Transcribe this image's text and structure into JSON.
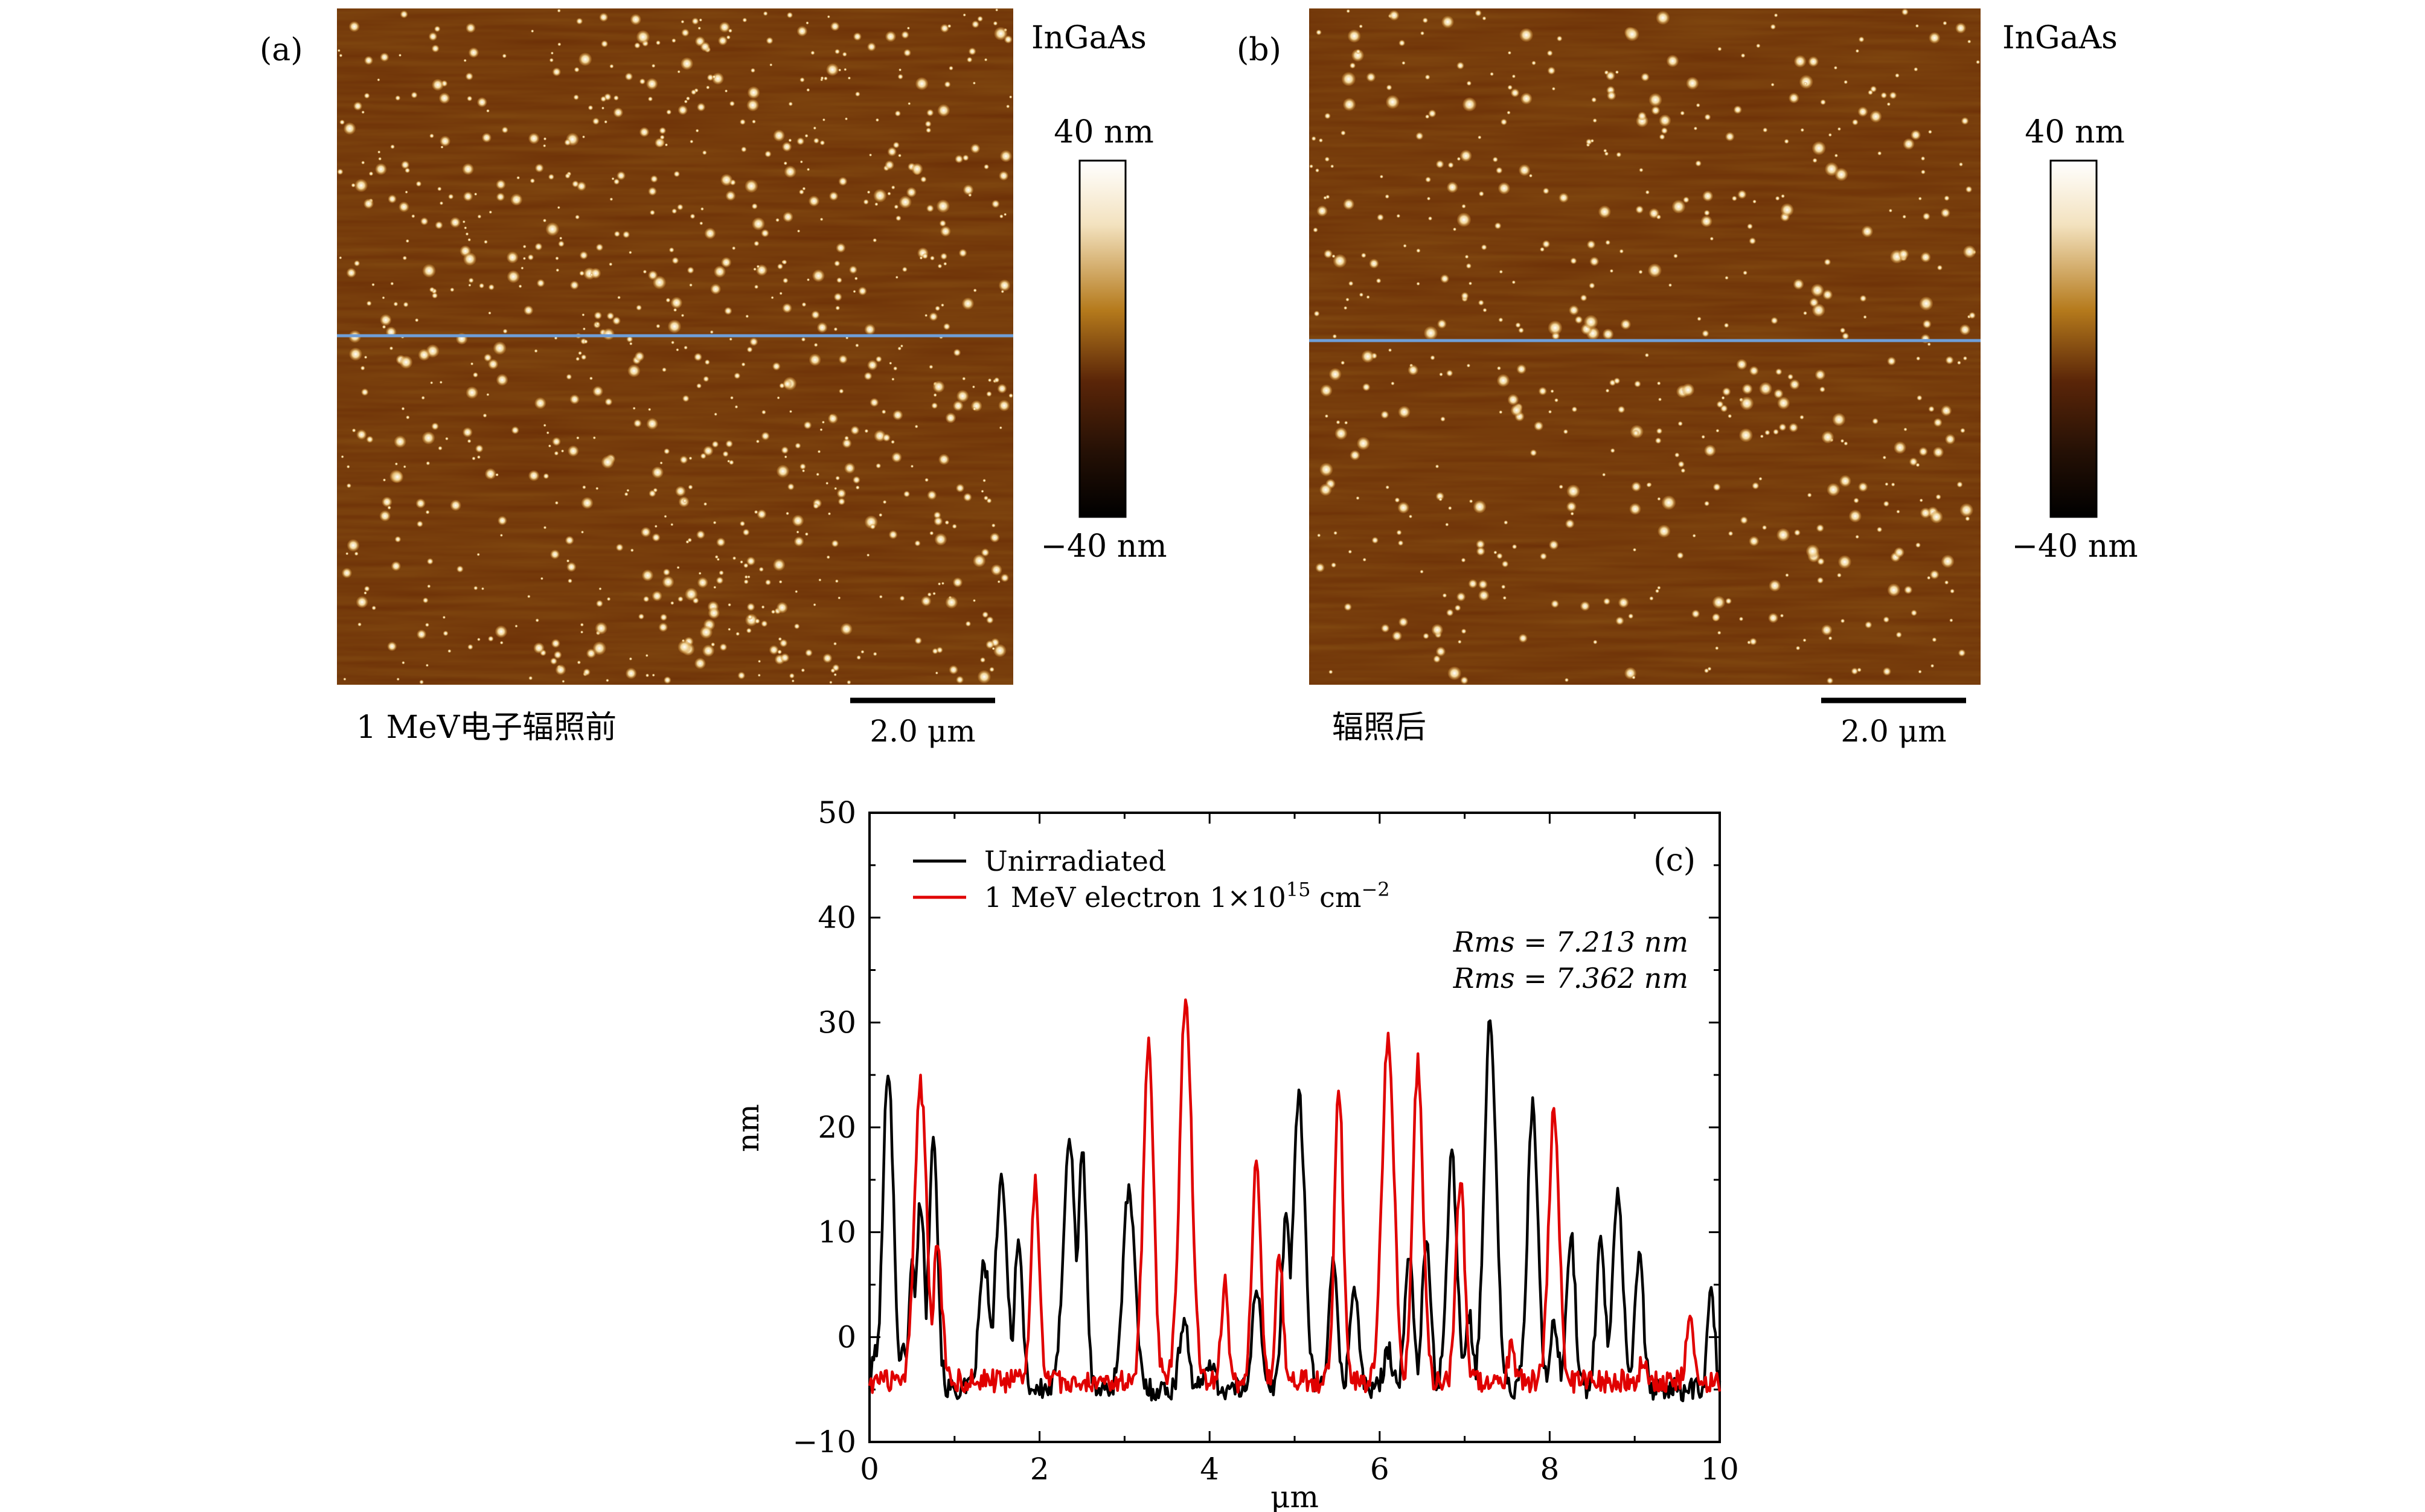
{
  "panel_a": {
    "label": "(a)",
    "material": "InGaAs",
    "colorbar_max": "40 nm",
    "colorbar_min": "−40 nm",
    "caption": "1 MeV电子辐照前",
    "scalebar": "2.0 μm"
  },
  "panel_b": {
    "label": "(b)",
    "material": "InGaAs",
    "colorbar_max": "40 nm",
    "colorbar_min": "−40 nm",
    "caption": "辐照后",
    "scalebar": "2.0 μm"
  },
  "colors": {
    "afm_base": "#6b2e06",
    "afm_high": "#fff7e0",
    "profile_line": "#6f9fd8",
    "unirradiated": "#000000",
    "irradiated": "#e00000"
  },
  "chart_data": {
    "type": "line",
    "panel_label": "(c)",
    "xlabel": "μm",
    "ylabel": "nm",
    "xlim": [
      0,
      10
    ],
    "ylim": [
      -10,
      50
    ],
    "xticks": [
      "0",
      "2",
      "4",
      "6",
      "8",
      "10"
    ],
    "yticks": [
      "−10",
      "0",
      "10",
      "20",
      "30",
      "40",
      "50"
    ],
    "legend_position": "top-left",
    "annotations": [
      "Rms = 7.213 nm",
      "Rms = 7.362 nm"
    ],
    "series": [
      {
        "name": "Unirradiated",
        "color": "#000000",
        "baseline": -5,
        "peaks": [
          [
            0.08,
            -1,
            0.04
          ],
          [
            0.22,
            26,
            0.06
          ],
          [
            0.38,
            -1,
            0.04
          ],
          [
            0.5,
            7,
            0.04
          ],
          [
            0.6,
            13,
            0.05
          ],
          [
            0.75,
            20,
            0.05
          ],
          [
            1.35,
            7,
            0.06
          ],
          [
            1.55,
            14.5,
            0.07
          ],
          [
            1.75,
            9,
            0.05
          ],
          [
            2.35,
            19,
            0.07
          ],
          [
            2.5,
            18,
            0.05
          ],
          [
            3.05,
            14,
            0.07
          ],
          [
            3.7,
            2,
            0.05
          ],
          [
            4.0,
            -2,
            0.05
          ],
          [
            4.55,
            5,
            0.05
          ],
          [
            4.9,
            12,
            0.05
          ],
          [
            5.05,
            23,
            0.07
          ],
          [
            5.45,
            7,
            0.05
          ],
          [
            5.7,
            5,
            0.05
          ],
          [
            6.1,
            -1,
            0.05
          ],
          [
            6.35,
            8,
            0.05
          ],
          [
            6.55,
            9,
            0.05
          ],
          [
            6.85,
            17,
            0.06
          ],
          [
            7.05,
            2,
            0.05
          ],
          [
            7.3,
            30,
            0.07
          ],
          [
            7.8,
            22,
            0.06
          ],
          [
            8.05,
            1,
            0.05
          ],
          [
            8.25,
            10,
            0.05
          ],
          [
            8.6,
            10,
            0.05
          ],
          [
            8.8,
            14,
            0.06
          ],
          [
            9.05,
            8,
            0.05
          ],
          [
            9.9,
            4.5,
            0.04
          ]
        ]
      },
      {
        "name": "1 MeV electron 1×10¹⁵ cm⁻²",
        "color": "#e00000",
        "baseline": -4.2,
        "peaks": [
          [
            0.6,
            24,
            0.07
          ],
          [
            0.8,
            9,
            0.05
          ],
          [
            1.95,
            14.5,
            0.05
          ],
          [
            3.28,
            28,
            0.06
          ],
          [
            3.72,
            32.5,
            0.07
          ],
          [
            4.18,
            5,
            0.04
          ],
          [
            4.55,
            17.5,
            0.05
          ],
          [
            4.82,
            8,
            0.04
          ],
          [
            5.52,
            24,
            0.05
          ],
          [
            6.1,
            29,
            0.07
          ],
          [
            6.45,
            26,
            0.06
          ],
          [
            6.95,
            15,
            0.05
          ],
          [
            7.55,
            -1,
            0.04
          ],
          [
            8.05,
            21.5,
            0.06
          ],
          [
            9.1,
            -2,
            0.04
          ],
          [
            9.65,
            2,
            0.04
          ]
        ]
      }
    ]
  },
  "legend": {
    "series1": "Unirradiated",
    "series2_prefix": "1 MeV electron 1×10",
    "series2_exp1": "15",
    "series2_mid": " cm",
    "series2_exp2": "−2"
  }
}
